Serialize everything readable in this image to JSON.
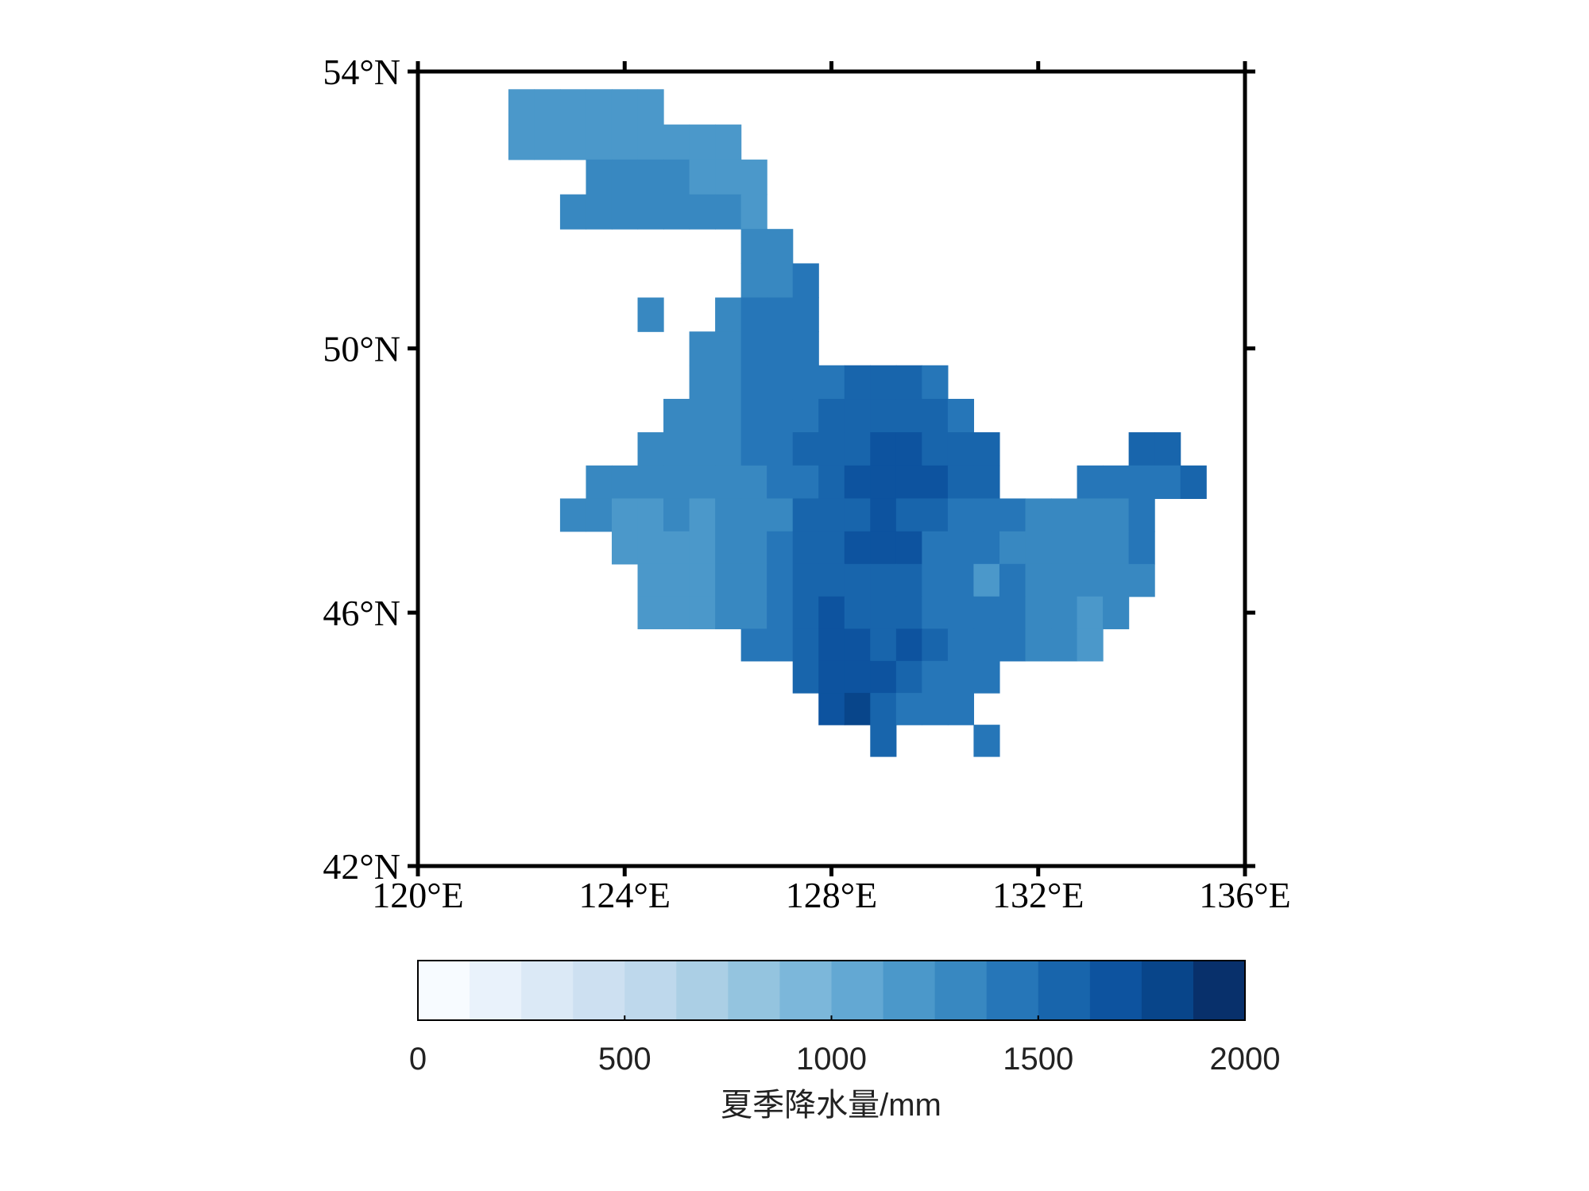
{
  "chart_data": {
    "type": "heatmap",
    "projection": "miller",
    "xlim": [
      120,
      136
    ],
    "ylim": [
      42,
      54
    ],
    "xticks": [
      {
        "value": 120,
        "label": "120°E"
      },
      {
        "value": 124,
        "label": "124°E"
      },
      {
        "value": 128,
        "label": "128°E"
      },
      {
        "value": 132,
        "label": "132°E"
      },
      {
        "value": 136,
        "label": "136°E"
      }
    ],
    "yticks": [
      {
        "value": 42,
        "label": "42°N"
      },
      {
        "value": 46,
        "label": "46°N"
      },
      {
        "value": 50,
        "label": "50°N"
      },
      {
        "value": 54,
        "label": "54°N"
      }
    ],
    "x": [
      122,
      122.5,
      123,
      123.5,
      124,
      124.5,
      125,
      125.5,
      126,
      126.5,
      127,
      127.5,
      128,
      128.5,
      129,
      129.5,
      130,
      130.5,
      131,
      131.5,
      132,
      132.5,
      133,
      133.5,
      134,
      134.5,
      135
    ],
    "y": [
      53.5,
      53,
      52.5,
      52,
      51.5,
      51,
      50.5,
      50,
      49.5,
      49,
      48.5,
      48,
      47.5,
      47,
      46.5,
      46,
      45.5,
      45,
      44.5,
      44
    ],
    "values": [
      [
        1190,
        1190,
        1190,
        1190,
        1190,
        1190,
        null,
        null,
        null,
        null,
        null,
        null,
        null,
        null,
        null,
        null,
        null,
        null,
        null,
        null,
        null,
        null,
        null,
        null,
        null,
        null,
        null
      ],
      [
        1190,
        1190,
        1190,
        1190,
        1190,
        1190,
        1190,
        1190,
        1190,
        null,
        null,
        null,
        null,
        null,
        null,
        null,
        null,
        null,
        null,
        null,
        null,
        null,
        null,
        null,
        null,
        null,
        null
      ],
      [
        null,
        null,
        null,
        1310,
        1310,
        1310,
        1310,
        1190,
        1190,
        1190,
        null,
        null,
        null,
        null,
        null,
        null,
        null,
        null,
        null,
        null,
        null,
        null,
        null,
        null,
        null,
        null,
        null
      ],
      [
        null,
        null,
        1310,
        1310,
        1310,
        1310,
        1310,
        1310,
        1310,
        1190,
        null,
        null,
        null,
        null,
        null,
        null,
        null,
        null,
        null,
        null,
        null,
        null,
        null,
        null,
        null,
        null,
        null
      ],
      [
        null,
        null,
        null,
        null,
        null,
        null,
        null,
        null,
        null,
        1310,
        1310,
        null,
        null,
        null,
        null,
        null,
        null,
        null,
        null,
        null,
        null,
        null,
        null,
        null,
        null,
        null,
        null
      ],
      [
        null,
        null,
        null,
        null,
        null,
        null,
        null,
        null,
        null,
        1310,
        1310,
        1440,
        null,
        null,
        null,
        null,
        null,
        null,
        null,
        null,
        null,
        null,
        null,
        null,
        null,
        null,
        null
      ],
      [
        null,
        null,
        null,
        null,
        null,
        1310,
        null,
        null,
        1310,
        1440,
        1440,
        1440,
        null,
        null,
        null,
        null,
        null,
        null,
        null,
        null,
        null,
        null,
        null,
        null,
        null,
        null,
        null
      ],
      [
        null,
        null,
        null,
        null,
        null,
        null,
        null,
        1310,
        1310,
        1440,
        1440,
        1440,
        null,
        null,
        null,
        null,
        null,
        null,
        null,
        null,
        null,
        null,
        null,
        null,
        null,
        null,
        null
      ],
      [
        null,
        null,
        null,
        null,
        null,
        null,
        null,
        1310,
        1310,
        1440,
        1440,
        1440,
        1440,
        1560,
        1560,
        1560,
        1440,
        null,
        null,
        null,
        null,
        null,
        null,
        null,
        null,
        null,
        null
      ],
      [
        null,
        null,
        null,
        null,
        null,
        null,
        1310,
        1310,
        1310,
        1440,
        1440,
        1440,
        1560,
        1560,
        1560,
        1560,
        1560,
        1440,
        null,
        null,
        null,
        null,
        null,
        null,
        null,
        null,
        null
      ],
      [
        null,
        null,
        null,
        null,
        null,
        1310,
        1310,
        1310,
        1310,
        1440,
        1440,
        1560,
        1560,
        1560,
        1690,
        1690,
        1560,
        1560,
        1560,
        null,
        null,
        null,
        null,
        null,
        1560,
        1560,
        null
      ],
      [
        null,
        null,
        null,
        1310,
        1310,
        1310,
        1310,
        1310,
        1310,
        1310,
        1440,
        1440,
        1560,
        1690,
        1690,
        1690,
        1690,
        1560,
        1560,
        null,
        null,
        null,
        1440,
        1440,
        1440,
        1440,
        1560
      ],
      [
        null,
        null,
        1310,
        1310,
        1190,
        1190,
        1310,
        1190,
        1310,
        1310,
        1310,
        1560,
        1560,
        1560,
        1690,
        1560,
        1560,
        1440,
        1440,
        1440,
        1310,
        1310,
        1310,
        1310,
        1440,
        null,
        null
      ],
      [
        null,
        null,
        null,
        null,
        1190,
        1190,
        1190,
        1190,
        1310,
        1310,
        1440,
        1560,
        1560,
        1690,
        1690,
        1690,
        1440,
        1440,
        1440,
        1310,
        1310,
        1310,
        1310,
        1310,
        1440,
        null,
        null
      ],
      [
        null,
        null,
        null,
        null,
        null,
        1190,
        1190,
        1190,
        1310,
        1310,
        1440,
        1560,
        1560,
        1560,
        1560,
        1560,
        1440,
        1440,
        1190,
        1440,
        1310,
        1310,
        1310,
        1310,
        1310,
        null,
        null
      ],
      [
        null,
        null,
        null,
        null,
        null,
        1190,
        1190,
        1190,
        1310,
        1310,
        1440,
        1560,
        1690,
        1560,
        1560,
        1560,
        1440,
        1440,
        1440,
        1440,
        1310,
        1310,
        1190,
        1310,
        null,
        null,
        null
      ],
      [
        null,
        null,
        null,
        null,
        null,
        null,
        null,
        null,
        null,
        1440,
        1440,
        1560,
        1690,
        1690,
        1560,
        1690,
        1560,
        1440,
        1440,
        1440,
        1310,
        1310,
        1190,
        null,
        null,
        null,
        null
      ],
      [
        null,
        null,
        null,
        null,
        null,
        null,
        null,
        null,
        null,
        null,
        null,
        1560,
        1690,
        1690,
        1690,
        1560,
        1440,
        1440,
        1440,
        null,
        null,
        null,
        null,
        null,
        null,
        null,
        null
      ],
      [
        null,
        null,
        null,
        null,
        null,
        null,
        null,
        null,
        null,
        null,
        null,
        null,
        1690,
        1810,
        1560,
        1440,
        1440,
        1440,
        null,
        null,
        null,
        null,
        null,
        null,
        null,
        null,
        null
      ],
      [
        null,
        null,
        null,
        null,
        null,
        null,
        null,
        null,
        null,
        null,
        null,
        null,
        null,
        null,
        1560,
        null,
        null,
        null,
        1440,
        null,
        null,
        null,
        null,
        null,
        null,
        null,
        null
      ]
    ],
    "clim": [
      0,
      2000
    ],
    "cticks": [
      0,
      500,
      1000,
      1500,
      2000
    ],
    "colors": [
      "#f7fbff",
      "#e9f2fb",
      "#dbe9f6",
      "#cde0f1",
      "#bed8ec",
      "#abcfe5",
      "#94c4df",
      "#7cb7da",
      "#63a8d3",
      "#4b98ca",
      "#3888c1",
      "#2676b8",
      "#1865ac",
      "#0d539f",
      "#08458a",
      "#08306b"
    ],
    "colorbar_label": "夏季降水量/mm"
  }
}
